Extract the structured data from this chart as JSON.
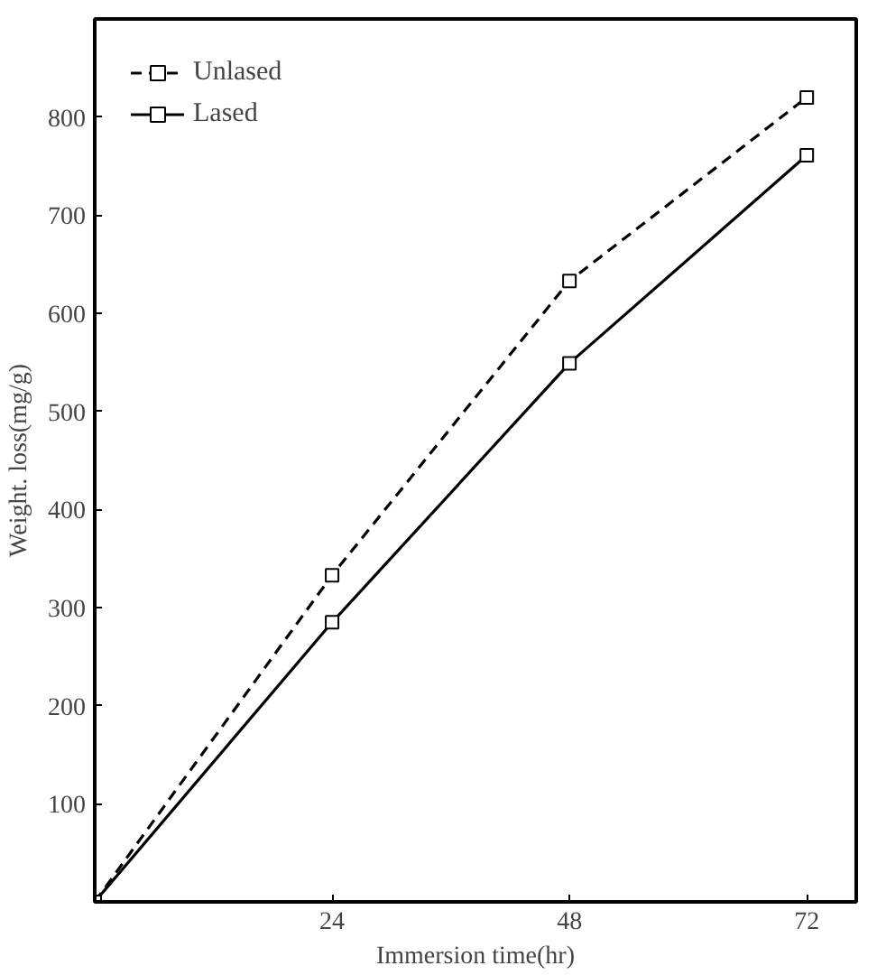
{
  "chart_data": {
    "type": "line",
    "xlabel": "Immersion time(hr)",
    "ylabel": "Weight. loss(mg/g)",
    "xlim": [
      0,
      77
    ],
    "ylim": [
      0,
      900
    ],
    "xticks": [
      24,
      48,
      72
    ],
    "yticks": [
      100,
      200,
      300,
      400,
      500,
      600,
      700,
      800
    ],
    "grid": false,
    "legend": "top left",
    "marker": "square",
    "series": [
      {
        "name": "Unlased",
        "color": "#000000",
        "line_style": "dashed",
        "x": [
          0,
          24,
          48,
          72
        ],
        "values": [
          0,
          333,
          633,
          820
        ]
      },
      {
        "name": "Lased",
        "color": "#000000",
        "line_style": "solid",
        "x": [
          0,
          24,
          48,
          72
        ],
        "values": [
          0,
          285,
          549,
          761
        ]
      }
    ]
  }
}
